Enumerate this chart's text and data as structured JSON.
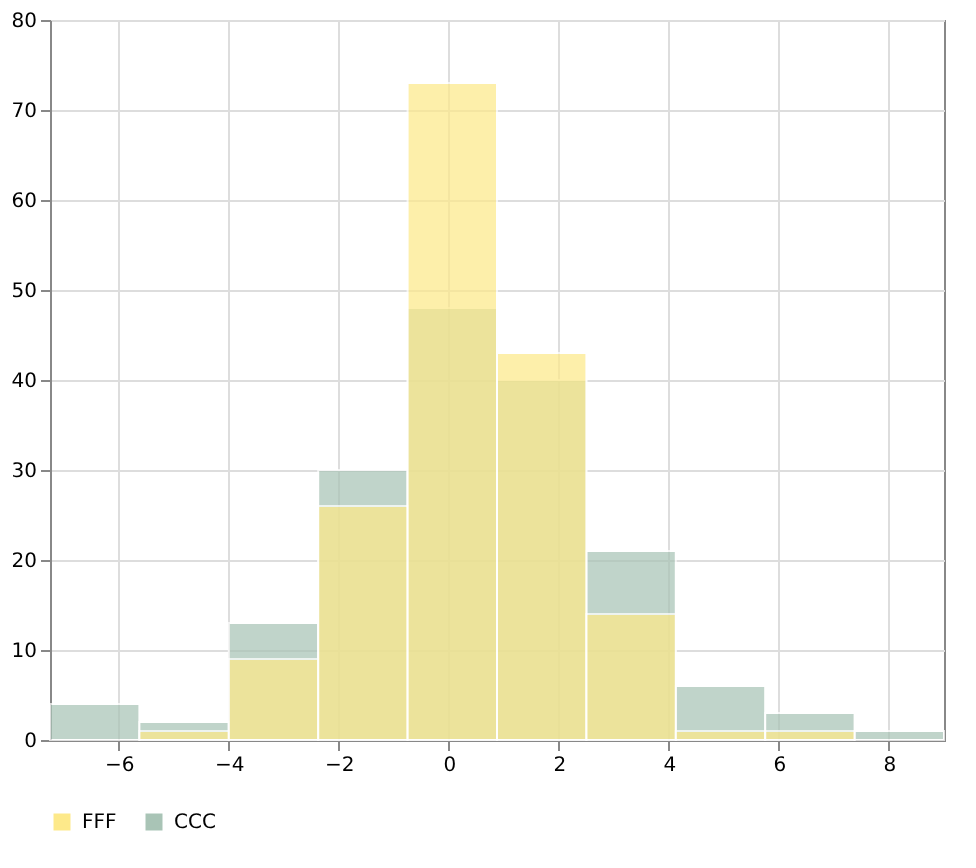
{
  "chart_data": {
    "type": "histogram",
    "bins": [
      -7.25,
      -5.625,
      -4,
      -2.375,
      -0.75,
      0.875,
      2.5,
      4.125,
      5.75,
      7.375,
      9
    ],
    "series": [
      {
        "name": "FFF",
        "color": "#fde98a",
        "values": [
          0,
          1,
          9,
          26,
          73,
          43,
          14,
          1,
          1,
          0
        ]
      },
      {
        "name": "CCC",
        "color": "#a9c4b6",
        "values": [
          4,
          2,
          13,
          30,
          48,
          40,
          21,
          6,
          3,
          1
        ]
      }
    ],
    "xlim": [
      -7.25,
      9
    ],
    "xticks": [
      -6,
      -4,
      -2,
      0,
      2,
      4,
      6,
      8
    ],
    "ylim": [
      0,
      80
    ],
    "yticks": [
      0,
      10,
      20,
      30,
      40,
      50,
      60,
      70,
      80
    ],
    "grid": true,
    "legend": "bottom"
  }
}
